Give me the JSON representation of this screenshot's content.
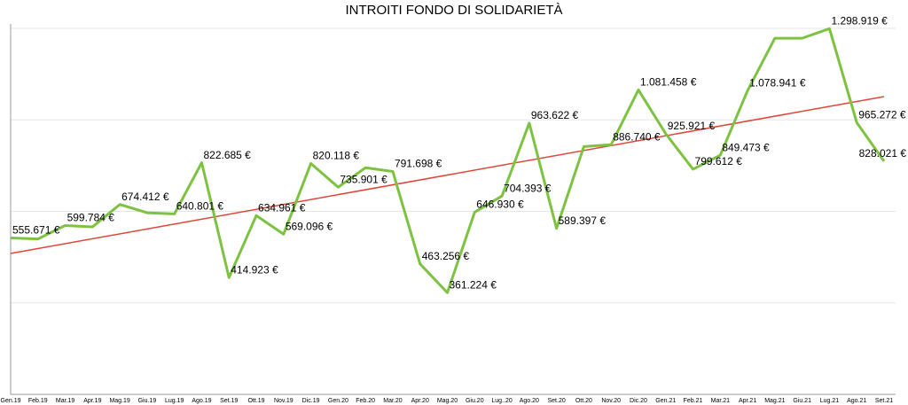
{
  "chart_data": {
    "type": "line",
    "title": "INTROITI FONDO DI SOLIDARIETÀ",
    "categories": [
      "Gen.19",
      "Feb.19",
      "Mar.19",
      "Apr.19",
      "Mag.19",
      "Giu.19",
      "Lug.19",
      "Ago.19",
      "Set.19",
      "Ott.19",
      "Nov.19",
      "Dic.19",
      "Gen.20",
      "Feb.20",
      "Mar.20",
      "Apr.20",
      "Mag.20",
      "Giu.20",
      "Lug..20",
      "Ago.20",
      "Set.20",
      "Ott.20",
      "Nov.20",
      "Dic.20",
      "Gen.21",
      "Feb.21",
      "Mar.21",
      "Apr.21",
      "Mag.21",
      "Giu.21",
      "Lug.21",
      "Ago.21",
      "Set.21"
    ],
    "series": [
      {
        "name": "Introiti",
        "color": "#7dc241",
        "values": [
          555671,
          552000,
          599784,
          595000,
          674412,
          645000,
          640801,
          822685,
          414923,
          634961,
          569096,
          820118,
          735901,
          805000,
          791698,
          463256,
          361224,
          646930,
          704393,
          963622,
          589397,
          880000,
          886740,
          1081458,
          925921,
          799612,
          849473,
          1078941,
          1265000,
          1265000,
          1298919,
          965272,
          828021
        ],
        "value_labels": [
          "555.671 €",
          null,
          "599.784 €",
          null,
          "674.412 €",
          null,
          "640.801 €",
          "822.685 €",
          "414.923 €",
          "634.961 €",
          "569.096 €",
          "820.118 €",
          "735.901 €",
          null,
          "791.698 €",
          "463.256 €",
          "361.224 €",
          "646.930 €",
          "704.393 €",
          "963.622 €",
          "589.397 €",
          null,
          "886.740 €",
          "1.081.458 €",
          "925.921 €",
          "799.612 €",
          "849.473 €",
          "1.078.941 €",
          null,
          null,
          "1.298.919 €",
          "965.272 €",
          "828.021 €"
        ]
      }
    ],
    "trendline_color": "#e0463a",
    "ylim": [
      0,
      1300000
    ],
    "yticks": [
      0,
      325000,
      650000,
      975000,
      1300000
    ],
    "grid": true
  }
}
